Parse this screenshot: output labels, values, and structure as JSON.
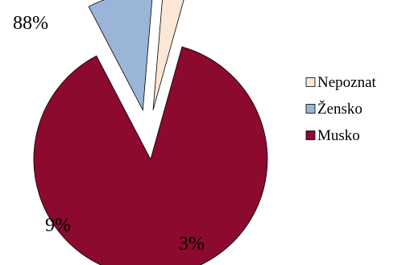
{
  "chart_data": {
    "type": "pie",
    "exploded": true,
    "legend_position": "right",
    "slices": [
      {
        "label": "Musko",
        "value": 88,
        "display": "88%",
        "color": "#8B0A2E"
      },
      {
        "label": "Žensko",
        "value": 9,
        "display": "9%",
        "color": "#9BB5D8"
      },
      {
        "label": "Nepoznat",
        "value": 3,
        "display": "3%",
        "color": "#FCE6D6"
      }
    ],
    "legend_order": [
      "Nepoznat",
      "Žensko",
      "Musko"
    ]
  }
}
